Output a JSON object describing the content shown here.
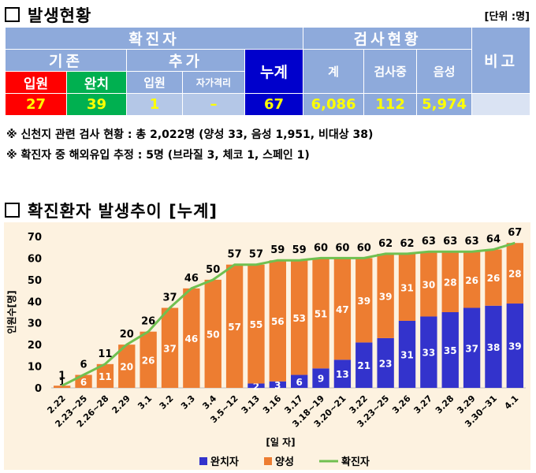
{
  "header": {
    "title": "발생현황",
    "unit": "[단위 :명]"
  },
  "status_table": {
    "confirmed_header": "확진자",
    "testing_header": "검사현황",
    "remarks_header": "비고",
    "existing_header": "기존",
    "added_header": "추가",
    "cumulative_header": "누계",
    "total_tests_header": "계",
    "in_testing_header": "검사중",
    "negative_header": "음성",
    "hospitalized_label": "입원",
    "recovered_label": "완치",
    "added_hospitalized_label": "입원",
    "self_quarantine_label": "자가격리",
    "values": {
      "existing_hospitalized": "27",
      "existing_recovered": "39",
      "added_hospitalized": "1",
      "added_self_quarantine": "–",
      "cumulative": "67",
      "total_tests": "6,086",
      "in_testing": "112",
      "negative": "5,974"
    }
  },
  "notes": [
    "※ 신천지 관련 검사 현황 : 총 2,022명 (양성 33, 음성 1,951, 비대상 38)",
    "※ 확진자 중 해외유입 추정 : 5명 (브라질 3, 체코 1, 스페인 1)"
  ],
  "chart_title": "확진환자 발생추이 [누계]",
  "colors": {
    "recovered": "#3333cc",
    "positive": "#ed7d31",
    "confirmed_line": "#70c050",
    "plot_bg": "#fdf2e0",
    "header_blue": "#8eaadb"
  },
  "chart_data": {
    "type": "bar",
    "stacked": true,
    "categories": [
      "2.22",
      "2.23~25",
      "2.26~28",
      "2.29",
      "3.1",
      "3.2",
      "3.3",
      "3.4",
      "3.5~12",
      "3.13",
      "3.16",
      "3.17",
      "3.18~19",
      "3.20~21",
      "3.22",
      "3.23~25",
      "3.26",
      "3.27",
      "3.28",
      "3.29",
      "3.30~31",
      "4.1"
    ],
    "series": [
      {
        "name": "완치자",
        "type": "bar",
        "values": [
          0,
          0,
          0,
          0,
          0,
          0,
          0,
          0,
          0,
          2,
          3,
          6,
          9,
          13,
          21,
          23,
          31,
          33,
          35,
          37,
          38,
          39
        ]
      },
      {
        "name": "양성",
        "type": "bar",
        "values": [
          1,
          6,
          11,
          20,
          26,
          37,
          46,
          50,
          57,
          55,
          56,
          53,
          51,
          47,
          39,
          39,
          31,
          30,
          28,
          26,
          26,
          28
        ]
      },
      {
        "name": "확진자",
        "type": "line",
        "values": [
          1,
          6,
          11,
          20,
          26,
          37,
          46,
          50,
          57,
          57,
          59,
          59,
          60,
          60,
          60,
          62,
          62,
          63,
          63,
          63,
          64,
          67
        ]
      }
    ],
    "ylabel": "인원수[명]",
    "xlabel": "[일 자]",
    "ylim": [
      0,
      70
    ],
    "yticks": [
      0,
      10,
      20,
      30,
      40,
      50,
      60,
      70
    ],
    "grid": false,
    "legend_position": "bottom"
  }
}
